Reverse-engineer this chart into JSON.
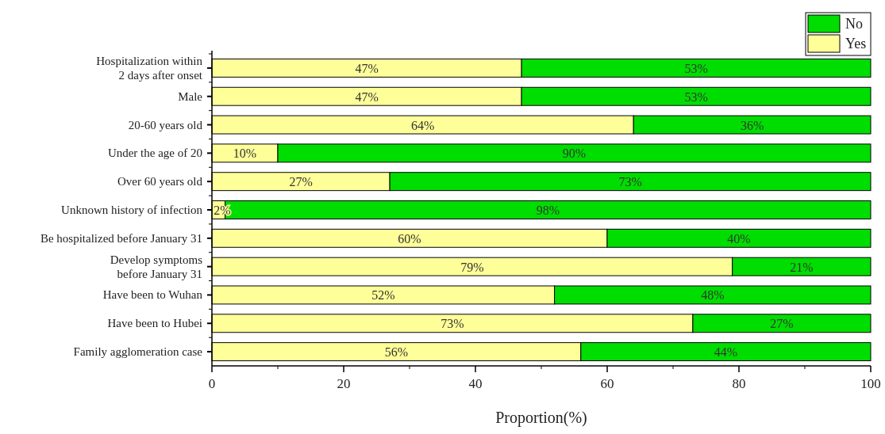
{
  "chart_data": {
    "type": "bar",
    "orientation": "horizontal",
    "stacked": true,
    "xlabel": "Proportion(%)",
    "categories": [
      "Hospitalization within\n2 days after onset",
      "Male",
      "20-60 years old",
      "Under the age of 20",
      "Over 60 years old",
      "Unknown history of infection",
      "Be hospitalized before January 31",
      "Develop symptoms\nbefore January 31",
      "Have been to Wuhan",
      "Have been to Hubei",
      "Family agglomeration case"
    ],
    "series": [
      {
        "name": "Yes",
        "color": "#ffff99",
        "values": [
          47,
          47,
          64,
          10,
          27,
          2,
          60,
          79,
          52,
          73,
          56
        ],
        "value_labels": [
          "47%",
          "47%",
          "64%",
          "10%",
          "27%",
          "2%",
          "60%",
          "79%",
          "52%",
          "73%",
          "56%"
        ]
      },
      {
        "name": "No",
        "color": "#00dd00",
        "values": [
          53,
          53,
          36,
          90,
          73,
          98,
          40,
          21,
          48,
          27,
          44
        ],
        "value_labels": [
          "53%",
          "53%",
          "36%",
          "90%",
          "73%",
          "98%",
          "40%",
          "21%",
          "48%",
          "27%",
          "44%"
        ]
      }
    ],
    "xlim": [
      0,
      100
    ],
    "xticks": [
      0,
      20,
      40,
      60,
      80,
      100
    ],
    "legend": "top right"
  }
}
